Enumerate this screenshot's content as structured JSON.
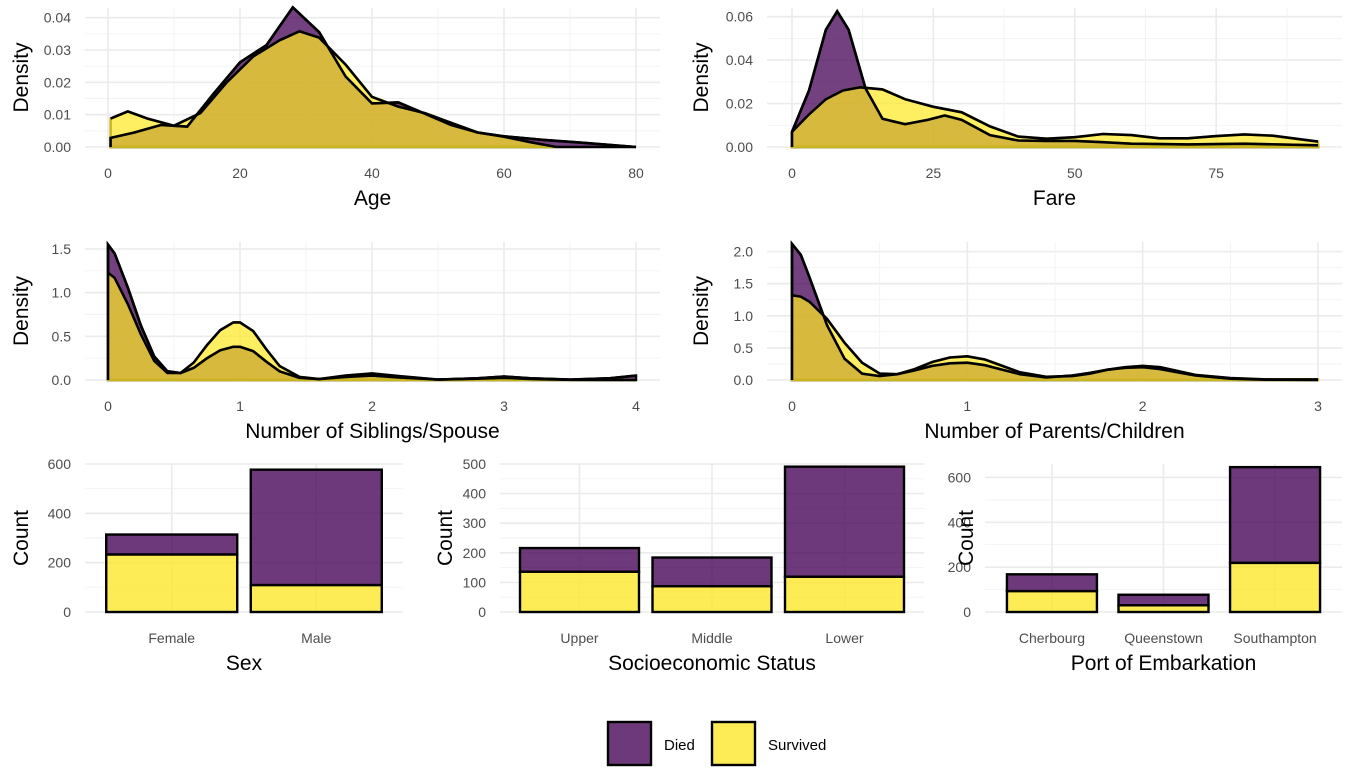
{
  "colors": {
    "died": "#440154",
    "survived": "#FDE725",
    "outline": "#000000",
    "grid": "#EBEBEB"
  },
  "legend": {
    "items": [
      {
        "key": "died",
        "label": "Died"
      },
      {
        "key": "survived",
        "label": "Survived"
      }
    ],
    "position": "bottom"
  },
  "chart_data": [
    {
      "id": "age",
      "type": "area",
      "subtype": "density",
      "xlabel": "Age",
      "ylabel": "Density",
      "xlim": [
        0,
        80
      ],
      "ylim": [
        0,
        0.043
      ],
      "xticks": [
        0,
        20,
        40,
        60,
        80
      ],
      "yticks": [
        0,
        0.01,
        0.02,
        0.03,
        0.04
      ],
      "ytick_labels": [
        "0.00",
        "0.01",
        "0.02",
        "0.03",
        "0.04"
      ],
      "series": [
        {
          "name": "Died",
          "x": [
            0.4,
            4,
            8,
            12,
            16,
            20,
            24,
            28,
            32,
            36,
            40,
            44,
            48,
            52,
            56,
            60,
            66,
            72,
            80
          ],
          "y": [
            0.0028,
            0.0045,
            0.0068,
            0.0063,
            0.0165,
            0.0262,
            0.0315,
            0.0432,
            0.0355,
            0.0218,
            0.0135,
            0.0138,
            0.0103,
            0.0068,
            0.0045,
            0.0033,
            0.0022,
            0.0013,
            0.0
          ]
        },
        {
          "name": "Survived",
          "x": [
            0.4,
            3,
            6,
            10,
            14,
            18,
            22,
            26,
            29,
            32,
            36,
            40,
            44,
            48,
            52,
            56,
            60,
            64,
            68
          ],
          "y": [
            0.0088,
            0.011,
            0.0088,
            0.0066,
            0.0105,
            0.02,
            0.028,
            0.033,
            0.0358,
            0.0338,
            0.0255,
            0.0155,
            0.0125,
            0.0105,
            0.0075,
            0.0045,
            0.0032,
            0.0015,
            0.0
          ]
        }
      ]
    },
    {
      "id": "fare",
      "type": "area",
      "subtype": "density",
      "xlabel": "Fare",
      "ylabel": "Density",
      "xlim": [
        0,
        93
      ],
      "ylim": [
        0,
        0.064
      ],
      "xticks": [
        0,
        25,
        50,
        75
      ],
      "yticks": [
        0,
        0.02,
        0.04,
        0.06
      ],
      "ytick_labels": [
        "0.00",
        "0.02",
        "0.04",
        "0.06"
      ],
      "series": [
        {
          "name": "Died",
          "x": [
            0,
            3,
            6,
            8,
            10,
            13,
            16,
            20,
            24,
            27,
            30,
            35,
            40,
            45,
            50,
            55,
            60,
            70,
            80,
            93
          ],
          "y": [
            0.007,
            0.026,
            0.054,
            0.0625,
            0.054,
            0.027,
            0.013,
            0.0105,
            0.0125,
            0.0145,
            0.0125,
            0.0055,
            0.003,
            0.0028,
            0.0028,
            0.0022,
            0.0015,
            0.0012,
            0.0015,
            0.0008
          ]
        },
        {
          "name": "Survived",
          "x": [
            0,
            3,
            6,
            9,
            12,
            16,
            20,
            25,
            30,
            35,
            40,
            45,
            50,
            55,
            60,
            65,
            70,
            75,
            80,
            85,
            93
          ],
          "y": [
            0.007,
            0.015,
            0.022,
            0.026,
            0.0275,
            0.0265,
            0.022,
            0.0185,
            0.016,
            0.0095,
            0.0048,
            0.0038,
            0.0045,
            0.006,
            0.0055,
            0.004,
            0.004,
            0.005,
            0.0058,
            0.0052,
            0.0025
          ]
        }
      ]
    },
    {
      "id": "sibsp",
      "type": "area",
      "subtype": "density",
      "xlabel": "Number of Siblings/Spouse",
      "ylabel": "Density",
      "xlim": [
        0,
        4
      ],
      "ylim": [
        0,
        1.58
      ],
      "xticks": [
        0,
        1,
        2,
        3,
        4
      ],
      "yticks": [
        0,
        0.5,
        1.0,
        1.5
      ],
      "ytick_labels": [
        "0.0",
        "0.5",
        "1.0",
        "1.5"
      ],
      "series": [
        {
          "name": "Died",
          "x": [
            0,
            0.05,
            0.15,
            0.25,
            0.35,
            0.45,
            0.55,
            0.65,
            0.75,
            0.85,
            0.95,
            1.0,
            1.1,
            1.2,
            1.3,
            1.45,
            1.6,
            1.8,
            2.0,
            2.2,
            2.5,
            2.8,
            3.0,
            3.2,
            3.5,
            3.8,
            4.0
          ],
          "y": [
            1.55,
            1.45,
            1.06,
            0.62,
            0.27,
            0.1,
            0.08,
            0.14,
            0.25,
            0.34,
            0.38,
            0.38,
            0.33,
            0.21,
            0.1,
            0.025,
            0.01,
            0.035,
            0.05,
            0.03,
            0.005,
            0.02,
            0.04,
            0.02,
            0.005,
            0.02,
            0.05
          ]
        },
        {
          "name": "Survived",
          "x": [
            0,
            0.05,
            0.15,
            0.25,
            0.35,
            0.45,
            0.55,
            0.65,
            0.75,
            0.85,
            0.95,
            1.0,
            1.1,
            1.2,
            1.3,
            1.45,
            1.6,
            1.8,
            2.0,
            2.2,
            2.5,
            2.8,
            3.0,
            3.2,
            3.5,
            3.8,
            4.0
          ],
          "y": [
            1.23,
            1.17,
            0.87,
            0.52,
            0.22,
            0.08,
            0.08,
            0.2,
            0.4,
            0.57,
            0.66,
            0.66,
            0.56,
            0.35,
            0.16,
            0.035,
            0.01,
            0.05,
            0.075,
            0.045,
            0.005,
            0.015,
            0.025,
            0.012,
            0.002,
            0.0,
            0.0
          ]
        }
      ]
    },
    {
      "id": "parch",
      "type": "area",
      "subtype": "density",
      "xlabel": "Number of Parents/Children",
      "ylabel": "Density",
      "xlim": [
        0,
        3
      ],
      "ylim": [
        0,
        2.15
      ],
      "xticks": [
        0,
        1,
        2,
        3
      ],
      "yticks": [
        0,
        0.5,
        1.0,
        1.5,
        2.0
      ],
      "ytick_labels": [
        "0.0",
        "0.5",
        "1.0",
        "1.5",
        "2.0"
      ],
      "series": [
        {
          "name": "Died",
          "x": [
            0,
            0.05,
            0.1,
            0.2,
            0.3,
            0.4,
            0.5,
            0.6,
            0.7,
            0.8,
            0.9,
            1.0,
            1.1,
            1.2,
            1.3,
            1.45,
            1.6,
            1.7,
            1.8,
            1.9,
            2.0,
            2.1,
            2.2,
            2.3,
            2.5,
            2.7,
            3.0
          ],
          "y": [
            2.12,
            1.95,
            1.6,
            0.85,
            0.33,
            0.1,
            0.06,
            0.09,
            0.15,
            0.22,
            0.26,
            0.27,
            0.23,
            0.16,
            0.09,
            0.04,
            0.07,
            0.11,
            0.16,
            0.19,
            0.2,
            0.17,
            0.12,
            0.07,
            0.02,
            0.005,
            0.0
          ]
        },
        {
          "name": "Survived",
          "x": [
            0,
            0.05,
            0.1,
            0.2,
            0.3,
            0.4,
            0.5,
            0.6,
            0.7,
            0.8,
            0.9,
            1.0,
            1.1,
            1.2,
            1.3,
            1.45,
            1.6,
            1.7,
            1.8,
            1.9,
            2.0,
            2.1,
            2.2,
            2.3,
            2.5,
            2.7,
            3.0
          ],
          "y": [
            1.32,
            1.3,
            1.22,
            0.95,
            0.58,
            0.27,
            0.1,
            0.09,
            0.17,
            0.28,
            0.35,
            0.37,
            0.32,
            0.22,
            0.12,
            0.05,
            0.06,
            0.1,
            0.16,
            0.2,
            0.22,
            0.2,
            0.14,
            0.08,
            0.03,
            0.01,
            0.01
          ]
        }
      ]
    },
    {
      "id": "sex",
      "type": "bar",
      "subtype": "stacked",
      "xlabel": "Sex",
      "ylabel": "Count",
      "categories": [
        "Female",
        "Male"
      ],
      "ylim": [
        0,
        600
      ],
      "yticks": [
        0,
        200,
        400,
        600
      ],
      "ytick_labels": [
        "0",
        "200",
        "400",
        "600"
      ],
      "series": [
        {
          "name": "Survived",
          "values": [
            233,
            109
          ]
        },
        {
          "name": "Died",
          "values": [
            81,
            468
          ]
        }
      ]
    },
    {
      "id": "class",
      "type": "bar",
      "subtype": "stacked",
      "xlabel": "Socioeconomic Status",
      "ylabel": "Count",
      "categories": [
        "Upper",
        "Middle",
        "Lower"
      ],
      "ylim": [
        0,
        500
      ],
      "yticks": [
        0,
        100,
        200,
        300,
        400,
        500
      ],
      "ytick_labels": [
        "0",
        "100",
        "200",
        "300",
        "400",
        "500"
      ],
      "series": [
        {
          "name": "Survived",
          "values": [
            136,
            87,
            119
          ]
        },
        {
          "name": "Died",
          "values": [
            80,
            97,
            372
          ]
        }
      ]
    },
    {
      "id": "embarked",
      "type": "bar",
      "subtype": "stacked",
      "xlabel": "Port of Embarkation",
      "ylabel": "Count",
      "categories": [
        "Cherbourg",
        "Queenstown",
        "Southampton"
      ],
      "ylim": [
        0,
        660
      ],
      "yticks": [
        0,
        200,
        400,
        600
      ],
      "ytick_labels": [
        "0",
        "200",
        "400",
        "600"
      ],
      "series": [
        {
          "name": "Survived",
          "values": [
            93,
            30,
            219
          ]
        },
        {
          "name": "Died",
          "values": [
            75,
            47,
            427
          ]
        }
      ]
    }
  ]
}
